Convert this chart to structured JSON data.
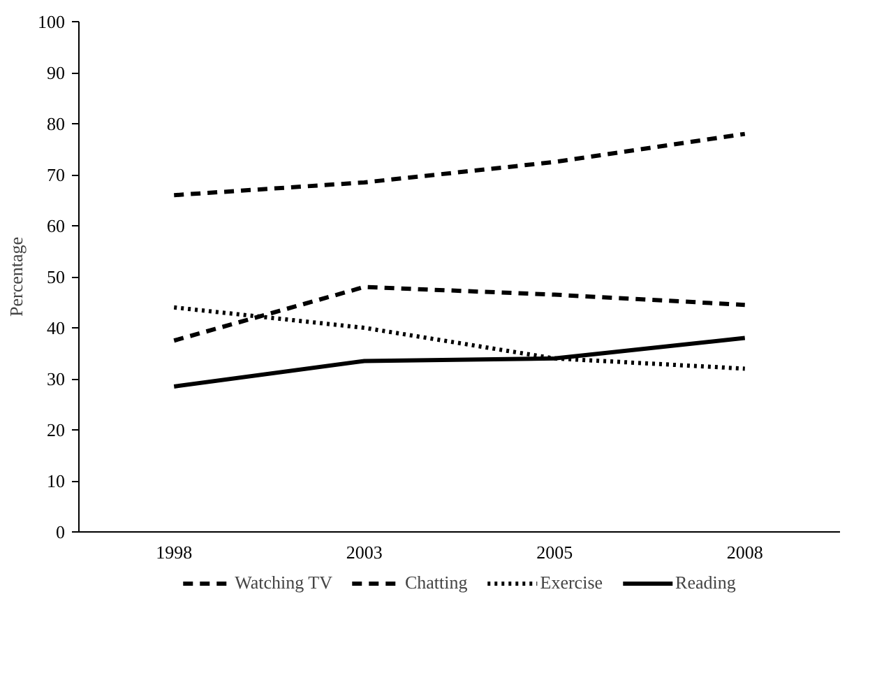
{
  "chart_data": {
    "type": "line",
    "ylabel": "Percentage",
    "categories": [
      "1998",
      "2003",
      "2005",
      "2008"
    ],
    "series": [
      {
        "name": "Watching TV",
        "color": "#000000",
        "line_style": "dashed",
        "values": [
          66,
          68.5,
          72.5,
          78
        ]
      },
      {
        "name": "Chatting",
        "color": "#000000",
        "line_style": "dashed",
        "values": [
          37.5,
          48,
          46.5,
          44.5
        ]
      },
      {
        "name": "Exercise",
        "color": "#000000",
        "line_style": "dotted",
        "values": [
          44,
          40,
          34,
          32
        ]
      },
      {
        "name": "Reading",
        "color": "#000000",
        "line_style": "solid",
        "values": [
          28.5,
          33.5,
          34,
          38
        ]
      }
    ],
    "ylim": [
      0,
      100
    ],
    "yticks": [
      0,
      10,
      20,
      30,
      40,
      50,
      60,
      70,
      80,
      90,
      100
    ],
    "grid": false,
    "legend": "bottom",
    "marker": "none"
  }
}
